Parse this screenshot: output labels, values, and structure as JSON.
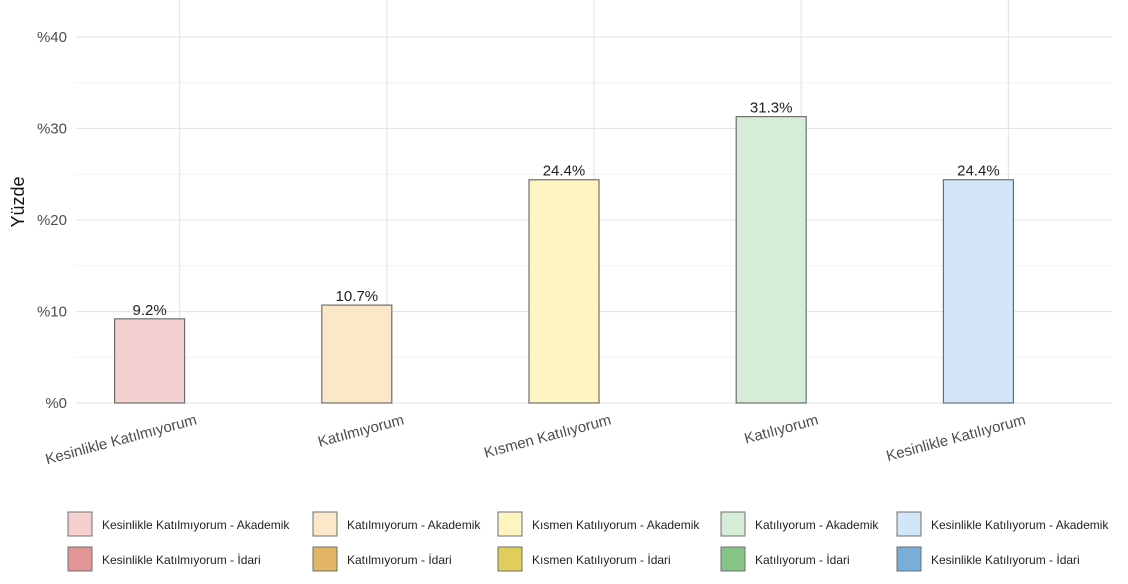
{
  "chart_data": {
    "type": "bar",
    "ylabel": "Yüzde",
    "ylim": [
      0,
      40
    ],
    "y_ticks": [
      {
        "value": 0,
        "label": "%0"
      },
      {
        "value": 10,
        "label": "%10"
      },
      {
        "value": 20,
        "label": "%20"
      },
      {
        "value": 30,
        "label": "%30"
      },
      {
        "value": 40,
        "label": "%40"
      }
    ],
    "categories": [
      "Kesinlikle Katılmıyorum",
      "Katılmıyorum",
      "Kısmen Katılıyorum",
      "Katılıyorum",
      "Kesinlikle Katılıyorum"
    ],
    "series": [
      {
        "name": "Akademik",
        "values": [
          9.2,
          10.7,
          24.4,
          31.3,
          24.4
        ],
        "labels": [
          "9.2%",
          "10.7%",
          "24.4%",
          "31.3%",
          "24.4%"
        ]
      },
      {
        "name": "İdari",
        "values": [
          null,
          null,
          null,
          null,
          null
        ],
        "labels": [
          "",
          "",
          "",
          "",
          ""
        ]
      }
    ],
    "grid": true,
    "legend_position": "bottom",
    "legend": [
      [
        {
          "label": "Kesinlikle Katılmıyorum - Akademik",
          "color": "#f4d0d0"
        },
        {
          "label": "Katılmıyorum - Akademik",
          "color": "#fae8c8"
        },
        {
          "label": "Kısmen Katılıyorum - Akademik",
          "color": "#fdf4c0"
        },
        {
          "label": "Katılıyorum - Akademik",
          "color": "#d5edd7"
        },
        {
          "label": "Kesinlikle Katılıyorum - Akademik",
          "color": "#d2e6f8"
        }
      ],
      [
        {
          "label": "Kesinlikle Katılmıyorum - İdari",
          "color": "#e39494"
        },
        {
          "label": "Katılmıyorum - İdari",
          "color": "#e2b565"
        },
        {
          "label": "Kısmen Katılıyorum - İdari",
          "color": "#dfcf5a"
        },
        {
          "label": "Katılıyorum - İdari",
          "color": "#86c386"
        },
        {
          "label": "Kesinlikle Katılıyorum - İdari",
          "color": "#79aedb"
        }
      ]
    ],
    "colors": {
      "akademik": [
        "#f4d0d0",
        "#fae8c8",
        "#fdf4c0",
        "#d5edd7",
        "#d2e6f8"
      ],
      "idari": [
        "#e39494",
        "#e2b565",
        "#dfcf5a",
        "#86c386",
        "#79aedb"
      ],
      "bar_stroke": "#6f6f6f",
      "grid_major": "#e6e6e6",
      "grid_minor": "#f2f2f2",
      "text": "#222222",
      "axis_text": "#4d4d4d"
    }
  }
}
